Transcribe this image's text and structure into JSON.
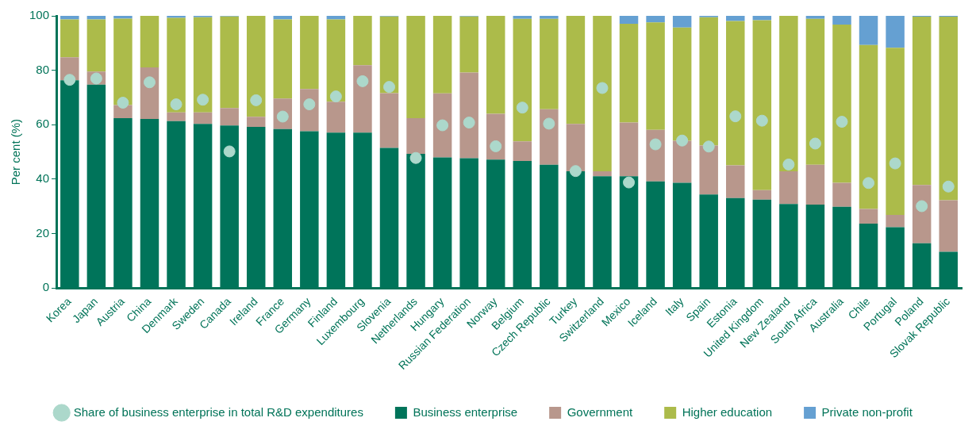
{
  "chart_data": {
    "type": "bar",
    "stacked": true,
    "ylabel": "Per cent (%)",
    "ylim": [
      0,
      100
    ],
    "yticks": [
      0,
      20,
      40,
      60,
      80,
      100
    ],
    "grid": false,
    "legend": "bottom",
    "categories": [
      "Korea",
      "Japan",
      "Austria",
      "China",
      "Denmark",
      "Sweden",
      "Canada",
      "Ireland",
      "France",
      "Germany",
      "Finland",
      "Luxembourg",
      "Slovenia",
      "Netherlands",
      "Hungary",
      "Russian Federation",
      "Norway",
      "Belgium",
      "Czech Republic",
      "Turkey",
      "Switzerland",
      "Mexico",
      "Iceland",
      "Italy",
      "Spain",
      "Estonia",
      "United Kingdom",
      "New Zealand",
      "South Africa",
      "Australia",
      "Chile",
      "Portugal",
      "Poland",
      "Slovak Republic"
    ],
    "series": [
      {
        "name": "Business enterprise",
        "color": "#00745a",
        "values": [
          76.3,
          74.7,
          62.4,
          62.1,
          61.3,
          60.3,
          59.7,
          59.2,
          58.4,
          57.6,
          57.1,
          57.1,
          51.5,
          49.3,
          48,
          47.7,
          47.2,
          46.7,
          45.3,
          42.9,
          41.1,
          41.1,
          39.2,
          38.7,
          34.4,
          33.1,
          32.5,
          30.9,
          30.7,
          29.9,
          23.7,
          22.4,
          16.5,
          13.3
        ]
      },
      {
        "name": "Government",
        "color": "#b8978c",
        "values": [
          8.5,
          4.8,
          4.8,
          19.0,
          3.2,
          4.2,
          6.4,
          3.7,
          11.2,
          15.5,
          11.4,
          24.8,
          20.1,
          13.1,
          23.5,
          31.5,
          16.8,
          7.2,
          20.4,
          17.4,
          1.8,
          19.7,
          18.9,
          15.4,
          18.0,
          12.0,
          3.5,
          12.0,
          14.6,
          8.8,
          5.4,
          4.5,
          21.4,
          19.0
        ]
      },
      {
        "name": "Higher education",
        "color": "#acbb4a",
        "values": [
          13.9,
          19.2,
          31.8,
          18.9,
          34.8,
          35.0,
          33.7,
          37.1,
          29.1,
          26.9,
          30.2,
          18.1,
          28.2,
          37.6,
          28.5,
          20.6,
          36.0,
          45.0,
          33.2,
          39.7,
          57.1,
          36.3,
          39.5,
          41.6,
          47.1,
          53.0,
          62.4,
          57.1,
          53.6,
          58.1,
          60.2,
          61.4,
          61.8,
          67.4
        ]
      },
      {
        "name": "Private non-profit",
        "color": "#65a0d2",
        "values": [
          1.3,
          1.3,
          1.0,
          0,
          0.7,
          0.5,
          0.2,
          0,
          1.3,
          0,
          1.3,
          0,
          0.2,
          0,
          0,
          0.2,
          0,
          1.1,
          1.1,
          0,
          0,
          2.9,
          2.4,
          4.3,
          0.5,
          1.9,
          1.6,
          0,
          1.1,
          3.2,
          10.7,
          11.7,
          0.3,
          0.3
        ]
      },
      {
        "name": "Share of business enterprise in total R&D expenditures",
        "type": "scatter",
        "marker": "circle",
        "color": "#acd8cb",
        "x": [
          "Korea",
          "Japan",
          "Austria",
          "China",
          "Denmark",
          "Sweden",
          "Canada",
          "Ireland",
          "France",
          "Germany",
          "Finland",
          "Luxembourg",
          "Slovenia",
          "Netherlands",
          "Hungary",
          "Russian Federation",
          "Norway",
          "Belgium",
          "Czech Republic",
          "Turkey",
          "Switzerland",
          "Mexico",
          "Iceland",
          "Italy",
          "Spain",
          "Estonia",
          "United Kingdom",
          "New Zealand",
          "South Africa",
          "Australia",
          "Chile",
          "Portugal",
          "Poland",
          "Slovak Republic"
        ],
        "values": [
          76.5,
          77,
          68.1,
          75.6,
          67.5,
          69.2,
          50.2,
          69,
          63,
          67.5,
          70.4,
          76,
          73.9,
          47.8,
          59.8,
          60.8,
          52.1,
          66.3,
          60.4,
          43,
          73.5,
          38.8,
          52.8,
          54.2,
          52,
          63.1,
          61.5,
          45.4,
          53.1,
          61.1,
          38.6,
          45.8,
          30.1,
          37.3
        ]
      }
    ]
  }
}
